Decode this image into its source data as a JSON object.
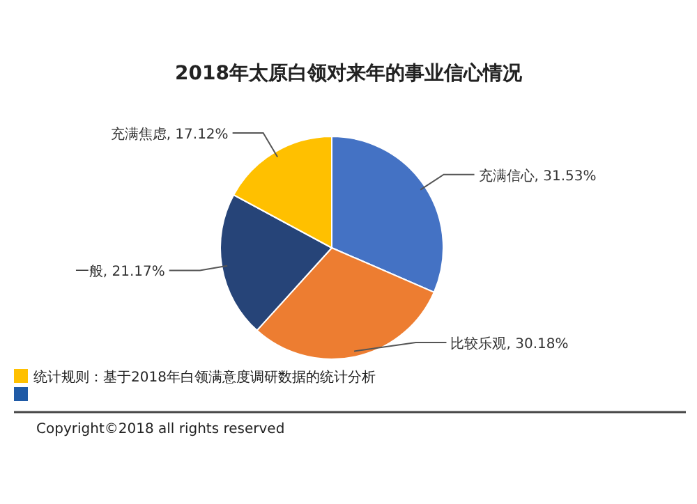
{
  "chart_data": {
    "type": "pie",
    "title": "2018年太原白领对来年的事业信心情况",
    "categories": [
      "充满信心",
      "比较乐观",
      "一般",
      "充满焦虑"
    ],
    "values": [
      31.53,
      30.18,
      21.17,
      17.12
    ],
    "colors": [
      "#4472c4",
      "#ed7d31",
      "#264478",
      "#ffc000"
    ],
    "value_labels": [
      "31.53%",
      "30.18%",
      "21.17%",
      "17.12%"
    ],
    "annotations": [
      "统计规则：基于2018年白领满意度调研数据的统计分析",
      "Copyright©2018 all rights reserved"
    ]
  }
}
